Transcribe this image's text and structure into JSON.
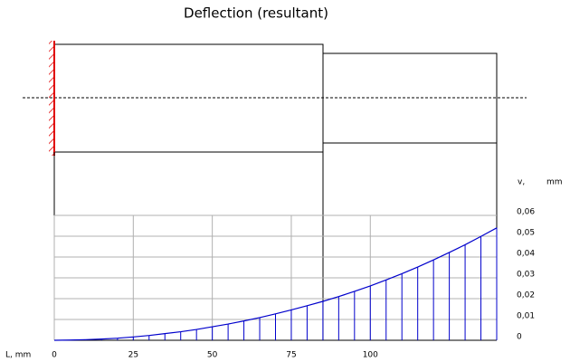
{
  "chart_data": {
    "type": "area",
    "title": "Deflection (resultant)",
    "x_label": "L, mm",
    "y_label": "v,",
    "y_unit": "mm",
    "x": [
      0,
      5,
      10,
      15,
      20,
      25,
      30,
      35,
      40,
      45,
      50,
      55,
      60,
      65,
      70,
      75,
      80,
      85,
      90,
      95,
      100,
      105,
      110,
      115,
      120,
      125,
      130,
      135,
      140
    ],
    "values": [
      0,
      0.0001,
      0.0003,
      0.0006,
      0.001,
      0.0016,
      0.0023,
      0.0032,
      0.0041,
      0.0052,
      0.0065,
      0.0078,
      0.0093,
      0.0109,
      0.0127,
      0.0146,
      0.0166,
      0.0187,
      0.021,
      0.0235,
      0.0261,
      0.029,
      0.032,
      0.0352,
      0.0386,
      0.0422,
      0.0459,
      0.0499,
      0.054
    ],
    "color": "#0000cc",
    "xlim": [
      0,
      140
    ],
    "xticks": [
      0,
      25,
      50,
      75,
      100
    ],
    "ylim": [
      0,
      0.06
    ],
    "yticks": [
      0,
      {
        "value": 0.01,
        "label": "0,01"
      },
      {
        "value": 0.02,
        "label": "0,02"
      },
      {
        "value": 0.03,
        "label": "0,03"
      },
      {
        "value": 0.04,
        "label": "0,04"
      },
      {
        "value": 0.05,
        "label": "0,05"
      },
      {
        "value": 0.06,
        "label": "0,06"
      }
    ],
    "grid": true
  }
}
